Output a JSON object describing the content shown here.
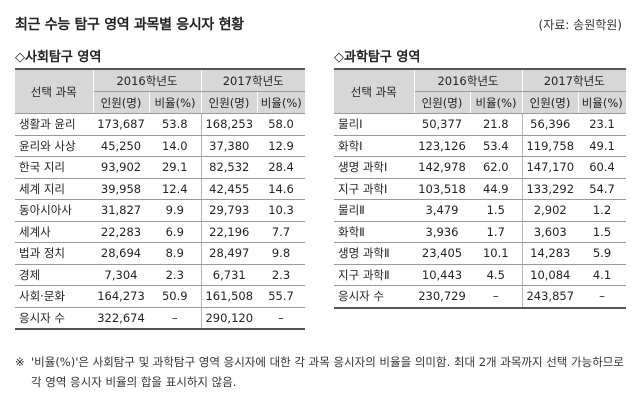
{
  "title": "최근 수능 탐구 영역 과목별 응시자 현황",
  "source": "(자료: 송원학원)",
  "social": {
    "section_title": "◇사회탐구 영역",
    "header": {
      "subject": "선택 과목",
      "year1": "2016학년도",
      "year2": "2017학년도",
      "count": "인원(명)",
      "ratio": "비율(%)"
    },
    "rows": [
      {
        "subject": "생활과 윤리",
        "c16": "173,687",
        "r16": "53.8",
        "c17": "168,253",
        "r17": "58.0"
      },
      {
        "subject": "윤리와 사상",
        "c16": "45,250",
        "r16": "14.0",
        "c17": "37,380",
        "r17": "12.9"
      },
      {
        "subject": "한국 지리",
        "c16": "93,902",
        "r16": "29.1",
        "c17": "82,532",
        "r17": "28.4"
      },
      {
        "subject": "세계 지리",
        "c16": "39,958",
        "r16": "12.4",
        "c17": "42,455",
        "r17": "14.6"
      },
      {
        "subject": "동아시아사",
        "c16": "31,827",
        "r16": "9.9",
        "c17": "29,793",
        "r17": "10.3"
      },
      {
        "subject": "세계사",
        "c16": "22,283",
        "r16": "6.9",
        "c17": "22,196",
        "r17": "7.7"
      },
      {
        "subject": "법과 정치",
        "c16": "28,694",
        "r16": "8.9",
        "c17": "28,497",
        "r17": "9.8"
      },
      {
        "subject": "경제",
        "c16": "7,304",
        "r16": "2.3",
        "c17": "6,731",
        "r17": "2.3"
      },
      {
        "subject": "사회·문화",
        "c16": "164,273",
        "r16": "50.9",
        "c17": "161,508",
        "r17": "55.7"
      },
      {
        "subject": "응시자 수",
        "c16": "322,674",
        "r16": "–",
        "c17": "290,120",
        "r17": "–"
      }
    ]
  },
  "science": {
    "section_title": "◇과학탐구 영역",
    "header": {
      "subject": "선택 과목",
      "year1": "2016학년도",
      "year2": "2017학년도",
      "count": "인원(명)",
      "ratio": "비율(%)"
    },
    "rows": [
      {
        "subject": "물리Ⅰ",
        "c16": "50,377",
        "r16": "21.8",
        "c17": "56,396",
        "r17": "23.1"
      },
      {
        "subject": "화학Ⅰ",
        "c16": "123,126",
        "r16": "53.4",
        "c17": "119,758",
        "r17": "49.1"
      },
      {
        "subject": "생명 과학Ⅰ",
        "c16": "142,978",
        "r16": "62.0",
        "c17": "147,170",
        "r17": "60.4"
      },
      {
        "subject": "지구 과학Ⅰ",
        "c16": "103,518",
        "r16": "44.9",
        "c17": "133,292",
        "r17": "54.7"
      },
      {
        "subject": "물리Ⅱ",
        "c16": "3,479",
        "r16": "1.5",
        "c17": "2,902",
        "r17": "1.2"
      },
      {
        "subject": "화학Ⅱ",
        "c16": "3,936",
        "r16": "1.7",
        "c17": "3,603",
        "r17": "1.5"
      },
      {
        "subject": "생명 과학Ⅱ",
        "c16": "23,405",
        "r16": "10.1",
        "c17": "14,283",
        "r17": "5.9"
      },
      {
        "subject": "지구 과학Ⅱ",
        "c16": "10,443",
        "r16": "4.5",
        "c17": "10,084",
        "r17": "4.1"
      },
      {
        "subject": "응시자 수",
        "c16": "230,729",
        "r16": "–",
        "c17": "243,857",
        "r17": "–"
      }
    ]
  },
  "note": {
    "mark": "※",
    "text": "'비율(%)'은 사회탐구 및 과학탐구 영역 응시자에 대한 각 과목 응시자의 비율을 의미함. 최대 2개 과목까지 선택 가능하므로 각 영역 응시자 비율의 합을 표시하지 않음."
  }
}
